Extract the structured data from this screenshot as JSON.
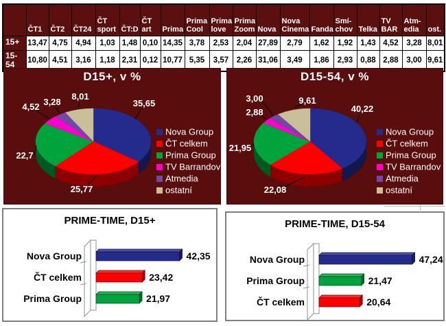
{
  "table": {
    "corner": "",
    "columns": [
      "ČT1",
      "ČT2",
      "ČT24",
      "ČT sport",
      "ČT:D",
      "ČT art",
      "Prima",
      "Prima Cool",
      "Prima love",
      "Prima Zoom",
      "Nova",
      "Nova Cinema",
      "Fanda",
      "Smí-chov",
      "Telka",
      "TV BAR",
      "Atm-edia",
      "ost."
    ],
    "rows": [
      {
        "label": "15+",
        "values": [
          "13,47",
          "4,75",
          "4,94",
          "1,03",
          "1,48",
          "0,10",
          "14,35",
          "3,78",
          "2,53",
          "2,04",
          "27,89",
          "2,79",
          "1,62",
          "1,92",
          "1,43",
          "4,52",
          "3,28",
          "8,01"
        ]
      },
      {
        "label": "15-54",
        "values": [
          "10,80",
          "4,51",
          "3,16",
          "1,18",
          "2,31",
          "0,12",
          "10,77",
          "5,35",
          "3,57",
          "2,26",
          "31,06",
          "3,49",
          "1,86",
          "2,93",
          "0,88",
          "2,88",
          "3,00",
          "9,61"
        ]
      }
    ]
  },
  "colors": {
    "panel_maroon": "#5A0D0D",
    "table_header_maroon": "#5C0F0F",
    "navy": "#242B8C",
    "red": "#FF0000",
    "green": "#00A33C",
    "magenta": "#FF00CE",
    "purple": "#7547A5",
    "tan": "#C9C099"
  },
  "chart_data": [
    {
      "type": "pie",
      "title": "D15+, v %",
      "legend_position": "right",
      "background": "#5A0D0D",
      "slices": [
        {
          "label": "Nova Group",
          "value": 35.65,
          "display": "35,65",
          "color": "#242B8C"
        },
        {
          "label": "ČT celkem",
          "value": 25.77,
          "display": "25,77",
          "color": "#FF0000"
        },
        {
          "label": "Prima Group",
          "value": 22.7,
          "display": "22,7",
          "color": "#00A33C"
        },
        {
          "label": "TV Barrandov",
          "value": 4.52,
          "display": "4,52",
          "color": "#FF00CE"
        },
        {
          "label": "Atmedia",
          "value": 3.28,
          "display": "3,28",
          "color": "#7547A5"
        },
        {
          "label": "ostatní",
          "value": 8.01,
          "display": "8,01",
          "color": "#C9C099"
        }
      ]
    },
    {
      "type": "pie",
      "title": "D15-54, v %",
      "legend_position": "right",
      "background": "#5A0D0D",
      "slices": [
        {
          "label": "Nova Group",
          "value": 40.22,
          "display": "40,22",
          "color": "#242B8C"
        },
        {
          "label": "ČT celkem",
          "value": 22.08,
          "display": "22,08",
          "color": "#FF0000"
        },
        {
          "label": "Prima Group",
          "value": 21.95,
          "display": "21,95",
          "color": "#00A33C"
        },
        {
          "label": "TV Barrandov",
          "value": 2.88,
          "display": "2,88",
          "color": "#FF00CE"
        },
        {
          "label": "Atmedia",
          "value": 3.0,
          "display": "3,00",
          "color": "#7547A5"
        },
        {
          "label": "ostatní",
          "value": 9.61,
          "display": "9,61",
          "color": "#C9C099"
        }
      ]
    },
    {
      "type": "bar",
      "title": "PRIME-TIME, D15+",
      "orientation": "horizontal",
      "bars": [
        {
          "label": "Nova Group",
          "value": 42.35,
          "display": "42,35",
          "color": "#242B8C"
        },
        {
          "label": "ČT celkem",
          "value": 23.42,
          "display": "23,42",
          "color": "#FF0000"
        },
        {
          "label": "Prima Group",
          "value": 21.97,
          "display": "21,97",
          "color": "#00A33C"
        }
      ]
    },
    {
      "type": "bar",
      "title": "PRIME-TIME, D15-54",
      "orientation": "horizontal",
      "bars": [
        {
          "label": "Nova Group",
          "value": 47.24,
          "display": "47,24",
          "color": "#242B8C"
        },
        {
          "label": "Prima Group",
          "value": 21.47,
          "display": "21,47",
          "color": "#00A33C"
        },
        {
          "label": "ČT celkem",
          "value": 20.64,
          "display": "20,64",
          "color": "#FF0000"
        }
      ]
    }
  ]
}
